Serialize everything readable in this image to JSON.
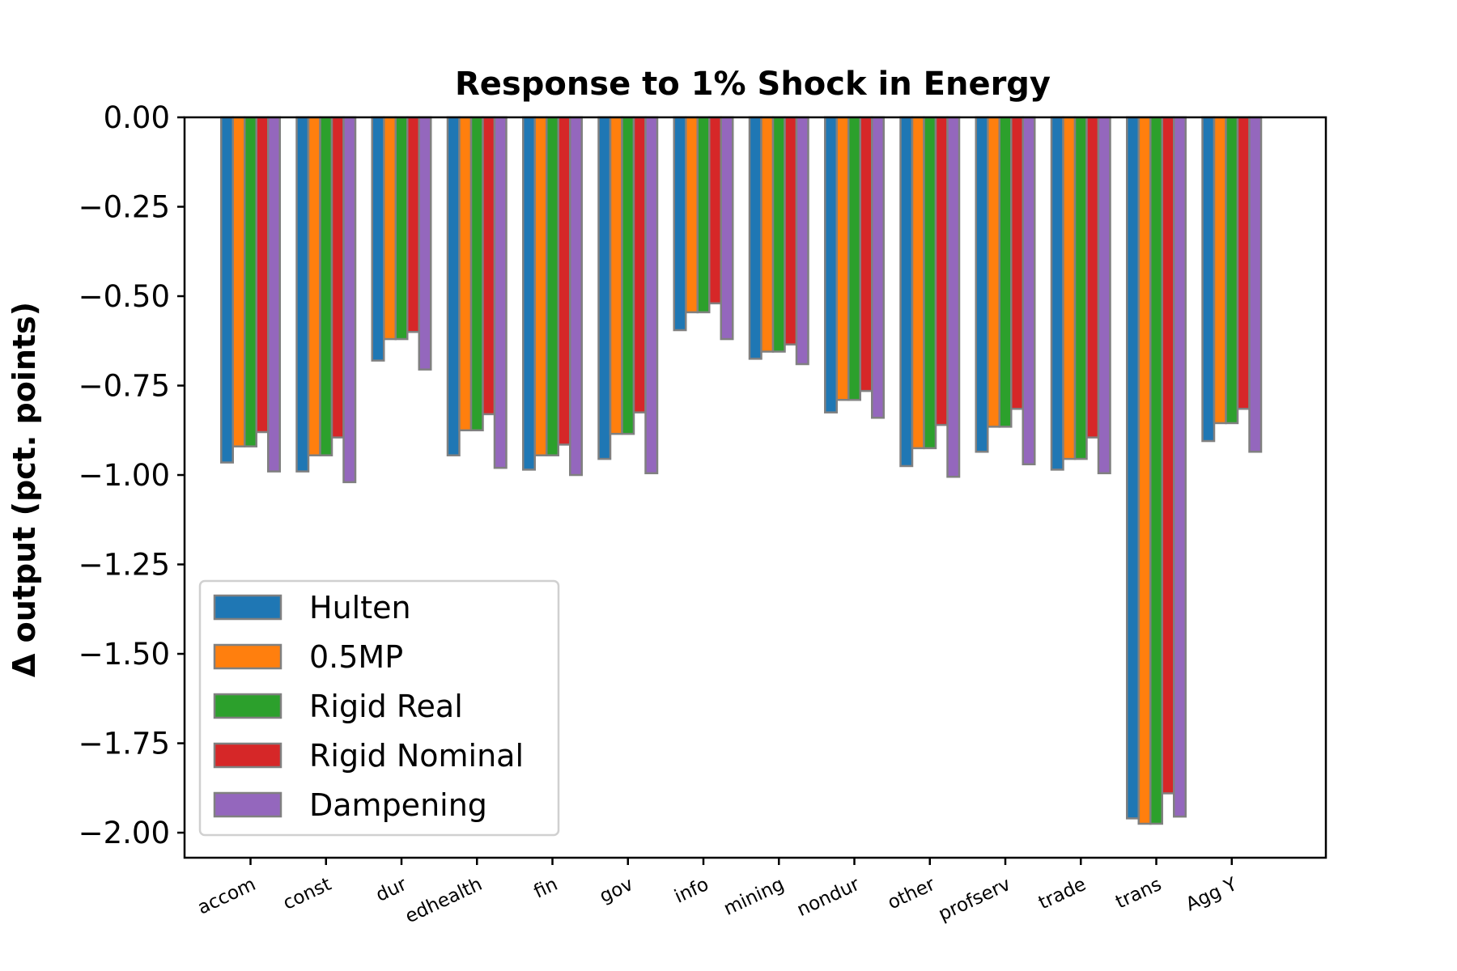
{
  "chart_data": {
    "type": "bar",
    "title": "Response to 1% Shock in Energy",
    "xlabel": "",
    "ylabel": "Δ output (pct. points)",
    "ylim": [
      -2.07,
      0.0
    ],
    "yticks": [
      "0.00",
      "−0.25",
      "−0.50",
      "−0.75",
      "−1.00",
      "−1.25",
      "−1.50",
      "−1.75",
      "−2.00"
    ],
    "ytick_values": [
      0.0,
      -0.25,
      -0.5,
      -0.75,
      -1.0,
      -1.25,
      -1.5,
      -1.75,
      -2.0
    ],
    "grid": false,
    "legend_position": "lower-left",
    "categories": [
      "accom",
      "const",
      "dur",
      "edhealth",
      "fin",
      "gov",
      "info",
      "mining",
      "nondur",
      "other",
      "profserv",
      "trade",
      "trans",
      "Agg Y"
    ],
    "series": [
      {
        "name": "Hulten",
        "color": "#1f77b4",
        "values": [
          -0.965,
          -0.99,
          -0.68,
          -0.945,
          -0.985,
          -0.955,
          -0.595,
          -0.675,
          -0.825,
          -0.975,
          -0.935,
          -0.985,
          -1.96,
          -0.905
        ]
      },
      {
        "name": "0.5MP",
        "color": "#ff7f0e",
        "values": [
          -0.92,
          -0.945,
          -0.62,
          -0.875,
          -0.945,
          -0.885,
          -0.545,
          -0.655,
          -0.79,
          -0.925,
          -0.865,
          -0.955,
          -1.975,
          -0.855
        ]
      },
      {
        "name": "Rigid Real",
        "color": "#2ca02c",
        "values": [
          -0.92,
          -0.945,
          -0.62,
          -0.875,
          -0.945,
          -0.885,
          -0.545,
          -0.655,
          -0.79,
          -0.925,
          -0.865,
          -0.955,
          -1.975,
          -0.855
        ]
      },
      {
        "name": "Rigid Nominal",
        "color": "#d62728",
        "values": [
          -0.88,
          -0.895,
          -0.6,
          -0.83,
          -0.915,
          -0.825,
          -0.52,
          -0.635,
          -0.765,
          -0.86,
          -0.815,
          -0.895,
          -1.89,
          -0.815
        ]
      },
      {
        "name": "Dampening",
        "color": "#9467bd",
        "values": [
          -0.99,
          -1.02,
          -0.705,
          -0.98,
          -1.0,
          -0.995,
          -0.62,
          -0.69,
          -0.84,
          -1.005,
          -0.97,
          -0.995,
          -1.955,
          -0.935
        ]
      }
    ],
    "bar_edge_color": "#808080"
  }
}
